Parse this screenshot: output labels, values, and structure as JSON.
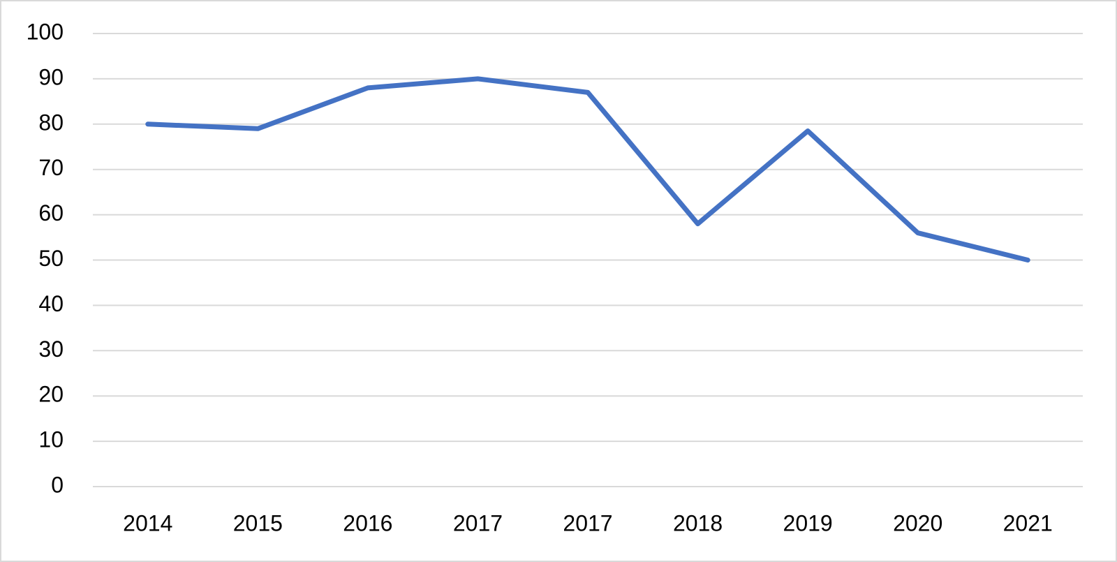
{
  "chart_data": {
    "type": "line",
    "categories": [
      "2014",
      "2015",
      "2016",
      "2017",
      "2017",
      "2018",
      "2019",
      "2020",
      "2021"
    ],
    "values": [
      80,
      79,
      88,
      90,
      87,
      58,
      78.5,
      56,
      50
    ],
    "color": "#4472c4",
    "ylim": [
      0,
      100
    ],
    "yticks": [
      0,
      10,
      20,
      30,
      40,
      50,
      60,
      70,
      80,
      90,
      100
    ],
    "grid": true
  }
}
